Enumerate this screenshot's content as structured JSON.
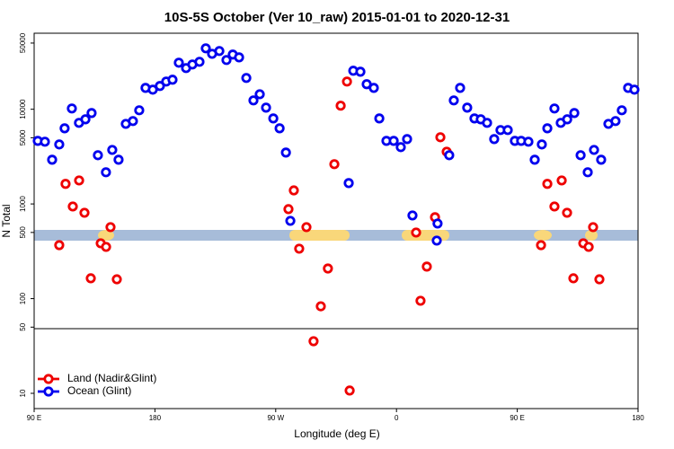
{
  "chart_data": {
    "type": "scatter",
    "title": "10S-5S October (Ver 10_raw)   2015-01-01 to 2020-12-31",
    "xlabel": "Longitude (deg E)",
    "ylabel": "N Total",
    "xlim": [
      90,
      540
    ],
    "ylim": [
      6.9,
      63500
    ],
    "log_y": true,
    "legend": "lower left",
    "xticks": [
      {
        "value": 90,
        "label": "90 E"
      },
      180,
      {
        "value": 270,
        "label": "90 W"
      },
      {
        "value": 360,
        "label": "0"
      },
      {
        "value": 450,
        "label": "90 E"
      },
      {
        "value": 540,
        "label": "180"
      }
    ],
    "yticks": [
      10,
      50,
      100,
      500,
      1000,
      5000,
      10000,
      50000
    ],
    "series": [
      {
        "name": "Land (Nadir&Glint)",
        "color": "#ee0000",
        "x": [
          108.7,
          113.4,
          118.8,
          123.5,
          127.5,
          132.2,
          139.6,
          143.6,
          146.9,
          151.6,
          279.5,
          283.5,
          287.5,
          292.9,
          298.2,
          303.6,
          308.9,
          313.7,
          318.4,
          323.1,
          325.1,
          374.6,
          382.6,
          388.7,
          392.7,
          397.4,
          377.9,
          467.7,
          472.4,
          477.7,
          483.1,
          487.1,
          491.8,
          499.2,
          503.2,
          506.5,
          511.2
        ],
        "values": [
          367,
          1630,
          940,
          1770,
          807,
          164,
          384,
          352,
          569,
          160,
          881,
          1390,
          337,
          569,
          35.5,
          83,
          208,
          2630,
          10900,
          19600,
          10.7,
          499,
          218,
          724,
          5060,
          3560,
          94.9,
          367,
          1630,
          940,
          1770,
          807,
          164,
          384,
          352,
          569,
          160
        ]
      },
      {
        "name": "Ocean (Glint)",
        "color": "#0000ee",
        "x": [
          92.7,
          98.0,
          103.4,
          108.7,
          112.7,
          118.1,
          123.4,
          128.2,
          132.8,
          137.5,
          143.5,
          148.2,
          152.9,
          158.3,
          163.6,
          168.3,
          173.0,
          178.4,
          183.7,
          188.4,
          193.1,
          197.8,
          203.2,
          207.9,
          213.2,
          217.9,
          222.6,
          228.0,
          233.3,
          238.0,
          242.7,
          248.1,
          253.4,
          258.1,
          262.8,
          268.2,
          272.9,
          277.6,
          280.9,
          324.4,
          327.8,
          333.1,
          337.8,
          343.1,
          347.2,
          352.5,
          357.9,
          363.2,
          367.9,
          371.9,
          390.0,
          390.6,
          399.3,
          402.7,
          407.4,
          412.7,
          418.1,
          422.8,
          427.5,
          432.8,
          437.5,
          442.9,
          448.2,
          452.9,
          458.3,
          463.0,
          468.3,
          472.4,
          477.7,
          482.4,
          487.2,
          492.5,
          497.2,
          502.5,
          507.2,
          512.5,
          517.9,
          523.2,
          527.9,
          532.6,
          537.3
        ],
        "values": [
          4634,
          4540,
          2930,
          4250,
          6290,
          10190,
          7180,
          7830,
          9120,
          3270,
          2160,
          3720,
          2930,
          7010,
          7500,
          9750,
          16800,
          16100,
          17600,
          19600,
          20500,
          31000,
          27200,
          29700,
          31700,
          44000,
          38500,
          41200,
          33100,
          37800,
          35300,
          21400,
          12400,
          14400,
          10400,
          8000,
          6290,
          3490,
          663,
          1660,
          25500,
          24900,
          18400,
          16800,
          8000,
          4634,
          4634,
          3980,
          4840,
          756,
          410,
          621,
          3270,
          12400,
          16800,
          10400,
          8000,
          7830,
          7180,
          4840,
          6030,
          6030,
          4634,
          4634,
          4540,
          2930,
          4250,
          6290,
          10190,
          7180,
          7830,
          9120,
          3270,
          2160,
          3720,
          2930,
          7010,
          7500,
          9750,
          16800,
          16100
        ]
      }
    ]
  }
}
